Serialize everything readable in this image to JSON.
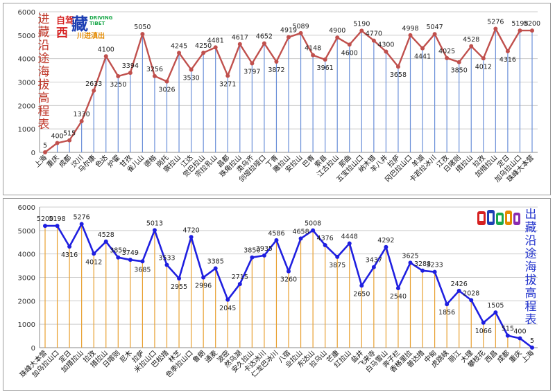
{
  "titles": {
    "in": "进藏沿途海拔高程表",
    "out": "出藏沿途海拔高程表"
  },
  "logo": {
    "zi": "自驾",
    "xi": "西",
    "zang": "藏",
    "driving": "DRIVING",
    "tibet": "TIBET",
    "chuanjin": "川进滇出"
  },
  "colors": {
    "in_line": "#c0504d",
    "out_line": "#1f1fe0",
    "in_drop": "#6a8fd8",
    "out_drop": "#e8a030",
    "grid": "#cccccc"
  },
  "chart_data": [
    {
      "type": "line",
      "title": "进藏沿途海拔高程表",
      "ylim": [
        0,
        6000
      ],
      "yticks": [
        0,
        1000,
        2000,
        3000,
        4000,
        5000,
        6000
      ],
      "categories": [
        "上海",
        "重庆",
        "成都",
        "汶川",
        "马尔康",
        "色达",
        "炉霍",
        "甘孜",
        "雀儿山",
        "德格",
        "岗托",
        "察拉山",
        "江达",
        "觉巴拉山",
        "宗拉乳山",
        "昌都",
        "珠角拉山",
        "类乌齐",
        "剑垭拉哑口",
        "丁青",
        "雕拉山",
        "安拉山",
        "巴青",
        "索县",
        "江古拉山",
        "那曲",
        "五宝拉山口",
        "纳木错",
        "羊八井",
        "拉萨",
        "冈巴拉山口",
        "羊湖",
        "卡若拉冰川",
        "江孜",
        "日喀则",
        "措拉山",
        "拉孜",
        "加措拉山",
        "定日",
        "加乌拉山口",
        "珠峰大本营"
      ],
      "values": [
        5,
        400,
        515,
        1330,
        2633,
        4100,
        3250,
        3394,
        5050,
        3256,
        3026,
        4245,
        3530,
        4250,
        4481,
        3271,
        4617,
        3797,
        4652,
        3872,
        4919,
        5089,
        4148,
        3961,
        4900,
        4600,
        5190,
        4770,
        4300,
        3658,
        4998,
        4441,
        5047,
        4025,
        3850,
        4528,
        4012,
        5276,
        4316,
        5198,
        5200
      ]
    },
    {
      "type": "line",
      "title": "出藏沿途海拔高程表",
      "ylim": [
        0,
        6000
      ],
      "yticks": [
        0,
        1000,
        2000,
        3000,
        4000,
        5000,
        6000
      ],
      "categories": [
        "珠峰大本营",
        "加乌拉山口",
        "定日",
        "加措拉山",
        "拉孜",
        "措拉山",
        "日喀则",
        "尼木",
        "拉萨",
        "米拉山口",
        "巴松措",
        "林芝",
        "色季拉山口",
        "鲁朗",
        "通麦",
        "波密",
        "然乌湖",
        "安久拉山",
        "卡达冰川",
        "仁龙巴冰川",
        "八宿",
        "业拉山",
        "东达山",
        "拉乌山",
        "芒康",
        "红拉山",
        "盐井",
        "飞来寺",
        "白马雪山",
        "奔子栏",
        "香格里拉",
        "普达措",
        "中甸",
        "虎跳峡",
        "丽江",
        "大理",
        "攀枝花",
        "西昌",
        "成都",
        "重庆",
        "上海"
      ],
      "values": [
        5200,
        5198,
        4316,
        5276,
        4012,
        4528,
        3850,
        3749,
        3685,
        5013,
        3533,
        2955,
        4720,
        2996,
        3385,
        2045,
        2715,
        3850,
        3935,
        4586,
        3260,
        4658,
        5008,
        4376,
        3875,
        4448,
        2650,
        3437,
        4292,
        2540,
        3625,
        3288,
        3233,
        1856,
        2426,
        2028,
        1066,
        1505,
        515,
        400,
        5
      ]
    }
  ]
}
